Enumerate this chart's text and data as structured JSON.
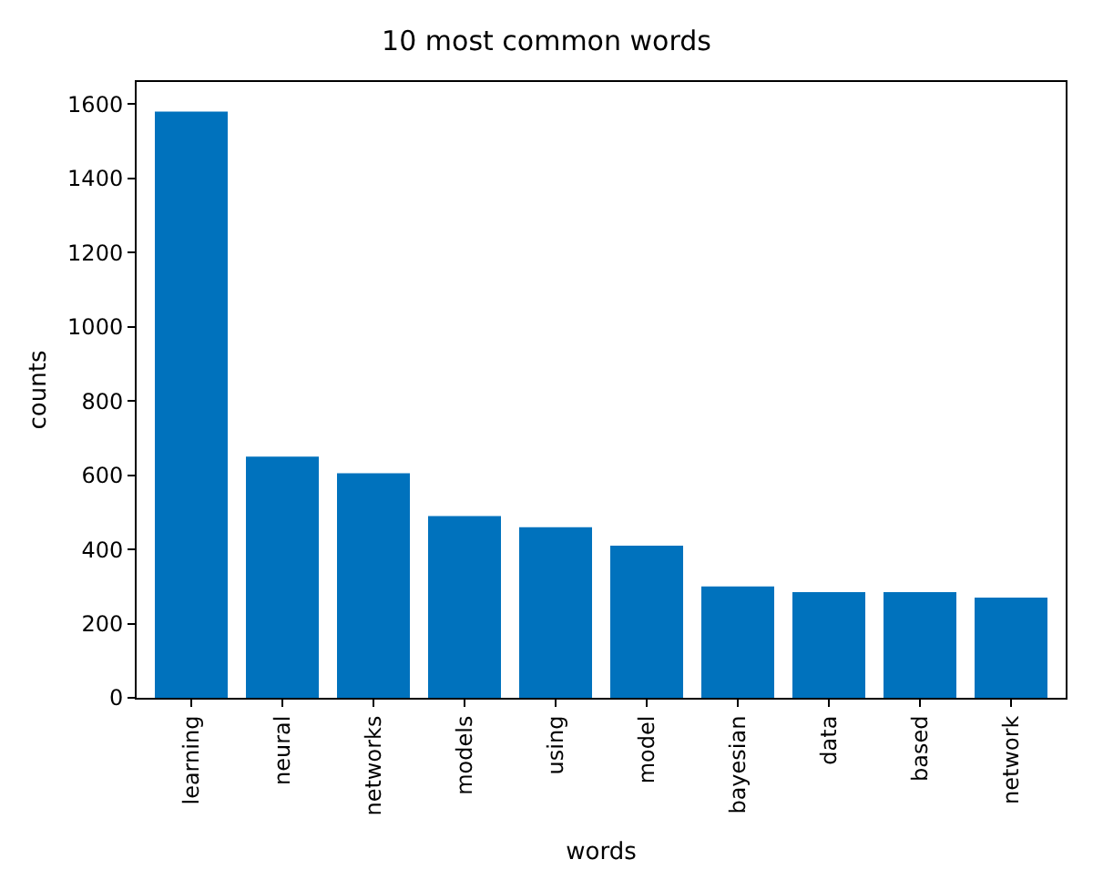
{
  "chart_data": {
    "type": "bar",
    "title": "10 most common words",
    "xlabel": "words",
    "ylabel": "counts",
    "categories": [
      "learning",
      "neural",
      "networks",
      "models",
      "using",
      "model",
      "bayesian",
      "data",
      "based",
      "network"
    ],
    "values": [
      1580,
      650,
      605,
      490,
      460,
      410,
      300,
      285,
      285,
      270
    ],
    "color": "#0072bd",
    "ylim": [
      0,
      1660
    ],
    "yticks": [
      0,
      200,
      400,
      600,
      800,
      1000,
      1200,
      1400,
      1600
    ]
  }
}
